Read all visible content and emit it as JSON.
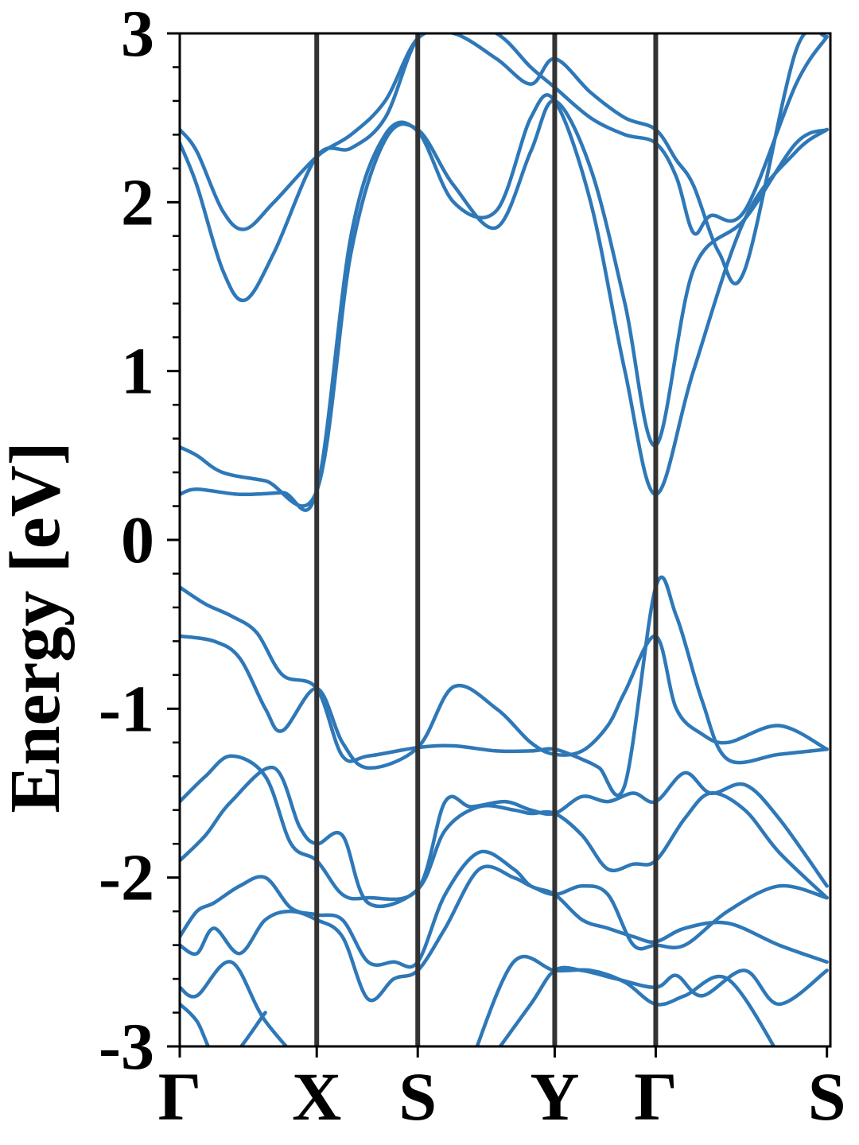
{
  "chart_data": {
    "type": "line",
    "title": "",
    "xlabel": "",
    "ylabel": "Energy [eV]",
    "ylim": [
      -3,
      3
    ],
    "yticks": [
      -3,
      -2,
      -1,
      0,
      1,
      2,
      3
    ],
    "ytick_labels": [
      "-3",
      "-2",
      "-1",
      "0",
      "1",
      "2",
      "3"
    ],
    "y_minor_step": 0.2,
    "xlim": [
      0,
      3.8
    ],
    "kpoints": [
      {
        "label": "Γ",
        "x": 0.0
      },
      {
        "label": "X",
        "x": 0.8
      },
      {
        "label": "S",
        "x": 1.39
      },
      {
        "label": "Y",
        "x": 2.19
      },
      {
        "label": "Γ",
        "x": 2.78
      },
      {
        "label": "S",
        "x": 3.78
      }
    ],
    "grid": false,
    "line_color": "#2e78b8",
    "vline_color": "#333333",
    "series": [
      {
        "x": [
          0,
          0.1,
          0.35,
          0.6,
          0.8,
          1.0,
          1.2,
          1.39,
          1.6,
          1.85,
          2.05,
          2.19,
          2.4,
          2.6,
          2.78,
          3.0,
          3.3,
          3.6,
          3.78
        ],
        "values": [
          0.27,
          0.3,
          0.27,
          0.28,
          0.29,
          1.8,
          2.4,
          2.42,
          2.0,
          1.95,
          2.5,
          2.6,
          2.0,
          1.0,
          0.27,
          1.0,
          1.9,
          2.3,
          2.43
        ]
      },
      {
        "x": [
          0,
          0.1,
          0.25,
          0.5,
          0.8,
          1.0,
          1.2,
          1.39,
          1.6,
          1.85,
          2.05,
          2.19,
          2.4,
          2.6,
          2.78,
          3.0,
          3.3,
          3.6,
          3.78
        ],
        "values": [
          0.55,
          0.5,
          0.4,
          0.35,
          0.29,
          1.7,
          2.37,
          2.43,
          2.1,
          1.85,
          2.3,
          2.6,
          2.2,
          1.4,
          0.56,
          1.6,
          1.9,
          2.35,
          2.43
        ]
      },
      {
        "x": [
          0,
          0.1,
          0.25,
          0.38,
          0.55,
          0.8,
          1.0,
          1.2,
          1.39,
          1.6,
          1.85,
          2.05,
          2.19,
          2.4,
          2.6,
          2.78,
          2.9,
          3.0,
          3.1,
          3.3,
          3.6,
          3.78
        ],
        "values": [
          2.35,
          2.1,
          1.6,
          1.42,
          1.7,
          2.27,
          2.32,
          2.5,
          2.97,
          3.05,
          3.0,
          2.8,
          2.68,
          2.5,
          2.4,
          2.35,
          2.15,
          1.82,
          1.92,
          1.95,
          2.7,
          2.98
        ]
      },
      {
        "x": [
          0,
          0.1,
          0.25,
          0.38,
          0.55,
          0.8,
          1.0,
          1.2,
          1.39,
          1.6,
          1.85,
          2.05,
          2.19,
          2.4,
          2.6,
          2.78,
          2.9,
          3.0,
          3.15,
          3.3,
          3.6,
          3.78
        ],
        "values": [
          2.43,
          2.3,
          1.95,
          1.84,
          2.0,
          2.27,
          2.4,
          2.6,
          2.97,
          3.0,
          2.85,
          2.7,
          2.85,
          2.65,
          2.5,
          2.43,
          2.25,
          2.1,
          1.7,
          1.6,
          2.9,
          2.98
        ]
      },
      {
        "x": [
          0,
          0.15,
          0.3,
          0.45,
          0.6,
          0.8,
          0.95,
          1.1,
          1.39,
          1.6,
          1.85,
          2.05,
          2.19,
          2.35,
          2.45,
          2.6,
          2.78,
          2.9,
          3.05,
          3.2,
          3.5,
          3.78
        ],
        "values": [
          -0.28,
          -0.38,
          -0.45,
          -0.55,
          -0.8,
          -0.88,
          -1.28,
          -1.28,
          -1.23,
          -1.22,
          -1.25,
          -1.25,
          -1.24,
          -1.3,
          -1.35,
          -1.45,
          -0.28,
          -0.45,
          -0.95,
          -1.3,
          -1.27,
          -1.24
        ]
      },
      {
        "x": [
          0,
          0.2,
          0.35,
          0.5,
          0.6,
          0.8,
          0.95,
          1.1,
          1.39,
          1.6,
          1.85,
          2.05,
          2.19,
          2.35,
          2.5,
          2.6,
          2.78,
          2.9,
          3.05,
          3.2,
          3.5,
          3.78
        ],
        "values": [
          -0.57,
          -0.6,
          -0.7,
          -1.0,
          -1.13,
          -0.88,
          -1.2,
          -1.35,
          -1.23,
          -0.87,
          -1.0,
          -1.2,
          -1.27,
          -1.25,
          -1.1,
          -0.9,
          -0.57,
          -1.0,
          -1.15,
          -1.2,
          -1.1,
          -1.24
        ]
      },
      {
        "x": [
          0,
          0.15,
          0.3,
          0.5,
          0.65,
          0.8,
          0.95,
          1.1,
          1.39,
          1.55,
          1.7,
          1.9,
          2.05,
          2.19,
          2.35,
          2.5,
          2.65,
          2.78,
          2.95,
          3.1,
          3.3,
          3.5,
          3.78
        ],
        "values": [
          -1.55,
          -1.4,
          -1.28,
          -1.4,
          -1.8,
          -1.9,
          -2.1,
          -2.12,
          -2.07,
          -1.55,
          -1.58,
          -1.55,
          -1.6,
          -1.62,
          -1.52,
          -1.55,
          -1.5,
          -1.55,
          -1.38,
          -1.5,
          -1.45,
          -1.65,
          -2.05
        ]
      },
      {
        "x": [
          0,
          0.15,
          0.3,
          0.55,
          0.7,
          0.8,
          0.95,
          1.1,
          1.39,
          1.55,
          1.75,
          1.95,
          2.05,
          2.19,
          2.35,
          2.5,
          2.65,
          2.78,
          2.95,
          3.1,
          3.3,
          3.5,
          3.78
        ],
        "values": [
          -1.9,
          -1.75,
          -1.55,
          -1.35,
          -1.7,
          -1.8,
          -1.75,
          -2.15,
          -2.07,
          -1.72,
          -1.58,
          -1.6,
          -1.62,
          -1.62,
          -1.75,
          -1.95,
          -1.92,
          -1.9,
          -1.65,
          -1.5,
          -1.6,
          -1.85,
          -2.12
        ]
      },
      {
        "x": [
          0,
          0.1,
          0.2,
          0.35,
          0.5,
          0.65,
          0.8,
          0.95,
          1.1,
          1.25,
          1.39,
          1.55,
          1.75,
          1.95,
          2.05,
          2.19,
          2.35,
          2.5,
          2.65,
          2.78,
          2.95,
          3.2,
          3.5,
          3.78
        ],
        "values": [
          -2.35,
          -2.2,
          -2.15,
          -2.05,
          -2.0,
          -2.18,
          -2.22,
          -2.25,
          -2.5,
          -2.5,
          -2.5,
          -2.1,
          -1.85,
          -1.95,
          -2.05,
          -2.1,
          -2.25,
          -2.3,
          -2.35,
          -2.38,
          -2.3,
          -2.27,
          -2.4,
          -2.5
        ]
      },
      {
        "x": [
          0,
          0.1,
          0.2,
          0.35,
          0.5,
          0.65,
          0.8,
          0.95,
          1.1,
          1.25,
          1.39,
          1.55,
          1.75,
          1.95,
          2.05,
          2.19,
          2.35,
          2.5,
          2.65,
          2.78,
          2.95,
          3.2,
          3.5,
          3.78
        ],
        "values": [
          -2.4,
          -2.45,
          -2.3,
          -2.45,
          -2.25,
          -2.2,
          -2.25,
          -2.35,
          -2.72,
          -2.6,
          -2.55,
          -2.3,
          -1.95,
          -2.0,
          -2.05,
          -2.1,
          -2.05,
          -2.1,
          -2.4,
          -2.4,
          -2.4,
          -2.2,
          -2.05,
          -2.12
        ]
      },
      {
        "x": [
          0,
          0.1,
          0.3,
          0.5,
          0.8
        ],
        "values": [
          -2.65,
          -2.7,
          -2.5,
          -2.85,
          -3.2
        ]
      },
      {
        "x": [
          0,
          0.1,
          0.25,
          0.5
        ],
        "values": [
          -2.75,
          -2.85,
          -3.1,
          -2.8
        ]
      },
      {
        "x": [
          1.8,
          2.05,
          2.19,
          2.35,
          2.55,
          2.78,
          2.9,
          3.05,
          3.3,
          3.5,
          3.78
        ],
        "values": [
          -3.1,
          -2.75,
          -2.55,
          -2.55,
          -2.6,
          -2.65,
          -2.58,
          -2.7,
          -2.55,
          -2.75,
          -2.55
        ]
      },
      {
        "x": [
          1.7,
          1.95,
          2.19,
          2.4,
          2.6,
          2.78,
          2.95,
          3.2,
          3.5
        ],
        "values": [
          -3.1,
          -2.5,
          -2.55,
          -2.55,
          -2.62,
          -2.75,
          -2.7,
          -2.6,
          -3.05
        ]
      }
    ]
  }
}
